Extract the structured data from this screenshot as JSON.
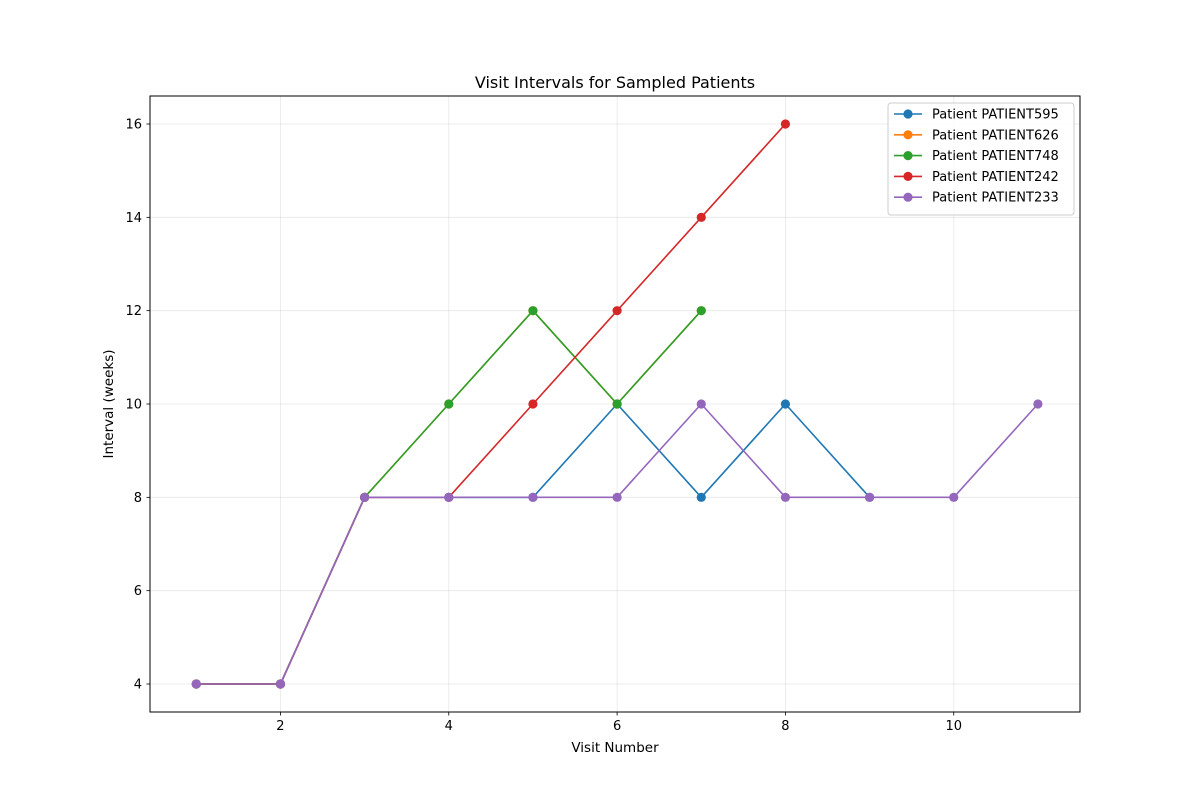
{
  "chart_data": {
    "type": "line",
    "title": "Visit Intervals for Sampled Patients",
    "xlabel": "Visit Number",
    "ylabel": "Interval (weeks)",
    "xlim": [
      0.45,
      11.5
    ],
    "ylim": [
      3.4,
      16.6
    ],
    "xticks": [
      2,
      4,
      6,
      8,
      10
    ],
    "yticks": [
      4,
      6,
      8,
      10,
      12,
      14,
      16
    ],
    "grid": true,
    "legend_position": "top-right",
    "series": [
      {
        "name": "Patient PATIENT595",
        "color": "#1f77b4",
        "x": [
          1,
          2,
          3,
          4,
          5,
          6,
          7,
          8,
          9
        ],
        "y": [
          4,
          4,
          8,
          8,
          8,
          10,
          8,
          10,
          8
        ]
      },
      {
        "name": "Patient PATIENT626",
        "color": "#ff7f0e",
        "x": [
          1,
          2,
          3,
          4,
          5,
          6,
          7
        ],
        "y": [
          4,
          4,
          8,
          10,
          12,
          10,
          12
        ]
      },
      {
        "name": "Patient PATIENT748",
        "color": "#2ca02c",
        "x": [
          1,
          2,
          3,
          4,
          5,
          6,
          7
        ],
        "y": [
          4,
          4,
          8,
          10,
          12,
          10,
          12
        ]
      },
      {
        "name": "Patient PATIENT242",
        "color": "#d62728",
        "x": [
          1,
          2,
          3,
          4,
          5,
          6,
          7,
          8
        ],
        "y": [
          4,
          4,
          8,
          8,
          10,
          12,
          14,
          16
        ]
      },
      {
        "name": "Patient PATIENT233",
        "color": "#9467bd",
        "x": [
          1,
          2,
          3,
          4,
          5,
          6,
          7,
          8,
          9,
          10,
          11
        ],
        "y": [
          4,
          4,
          8,
          8,
          8,
          8,
          10,
          8,
          8,
          8,
          10
        ]
      }
    ]
  }
}
